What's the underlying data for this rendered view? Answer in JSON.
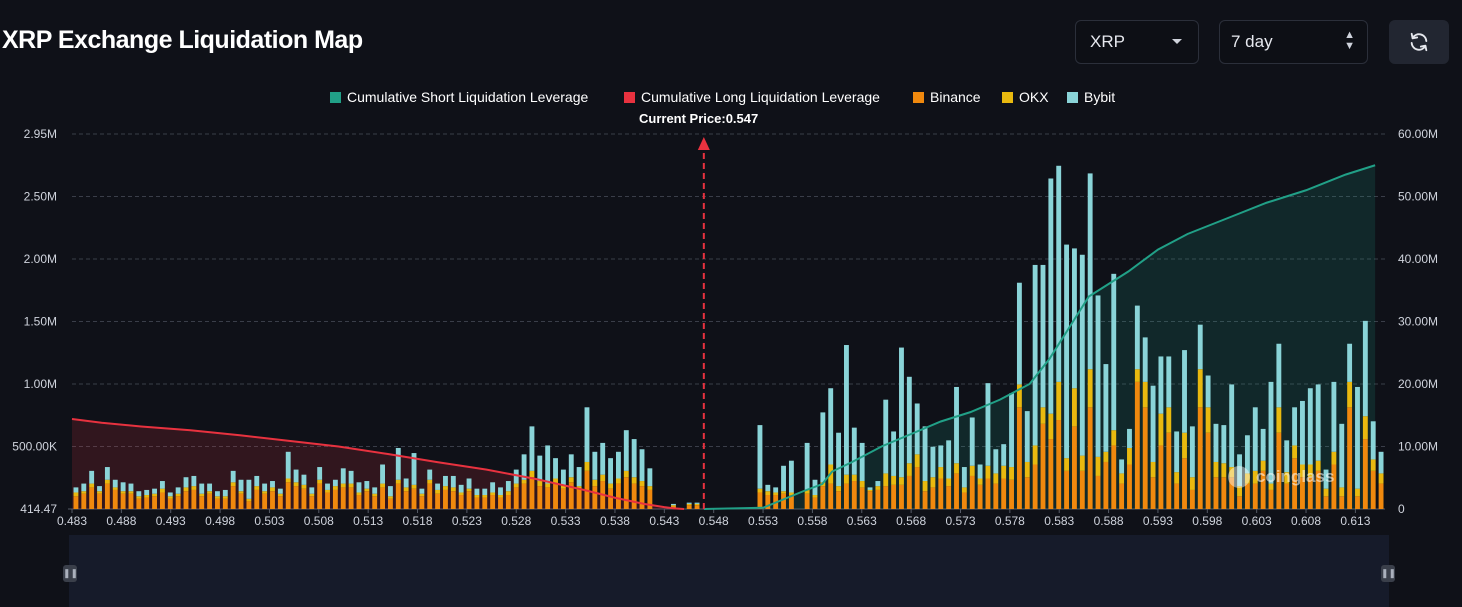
{
  "header": {
    "title": "XRP Exchange Liquidation Map",
    "coin_select": "XRP",
    "range_select": "7 day",
    "refresh_icon": "refresh-icon"
  },
  "watermark": "coinglass",
  "chart_data": {
    "type": "bar",
    "legend": [
      {
        "name": "Cumulative Short Liquidation Leverage",
        "color": "#21a087"
      },
      {
        "name": "Cumulative Long Liquidation Leverage",
        "color": "#e8323f"
      },
      {
        "name": "Binance",
        "color": "#f0890e"
      },
      {
        "name": "OKX",
        "color": "#e9b90f"
      },
      {
        "name": "Bybit",
        "color": "#8ad4d8"
      }
    ],
    "current_price_label": "Current Price:0.547",
    "current_price": 0.547,
    "x_range": [
      0.483,
      0.616
    ],
    "x_ticks": [
      "0.483",
      "0.488",
      "0.493",
      "0.498",
      "0.503",
      "0.508",
      "0.513",
      "0.518",
      "0.523",
      "0.528",
      "0.533",
      "0.538",
      "0.543",
      "0.548",
      "0.553",
      "0.558",
      "0.563",
      "0.568",
      "0.573",
      "0.578",
      "0.583",
      "0.588",
      "0.593",
      "0.598",
      "0.603",
      "0.608",
      "0.613"
    ],
    "y_left_ticks": [
      "414.47",
      "500.00K",
      "1.00M",
      "1.50M",
      "2.00M",
      "2.50M",
      "2.95M"
    ],
    "y_right_ticks": [
      "0",
      "10.00M",
      "20.00M",
      "30.00M",
      "40.00M",
      "50.00M",
      "60.00M"
    ],
    "y_left_range": [
      0,
      2950000
    ],
    "y_right_range": [
      0,
      60000000
    ],
    "stacks": [
      [
        100000,
        30000,
        40000
      ],
      [
        120000,
        20000,
        60000
      ],
      [
        170000,
        30000,
        100000
      ],
      [
        120000,
        20000,
        40000
      ],
      [
        200000,
        30000,
        100000
      ],
      [
        150000,
        20000,
        60000
      ],
      [
        120000,
        20000,
        70000
      ],
      [
        120000,
        20000,
        60000
      ],
      [
        80000,
        20000,
        40000
      ],
      [
        90000,
        20000,
        40000
      ],
      [
        100000,
        20000,
        40000
      ],
      [
        130000,
        30000,
        60000
      ],
      [
        80000,
        20000,
        30000
      ],
      [
        100000,
        20000,
        50000
      ],
      [
        140000,
        30000,
        80000
      ],
      [
        150000,
        30000,
        80000
      ],
      [
        100000,
        20000,
        80000
      ],
      [
        120000,
        20000,
        60000
      ],
      [
        80000,
        20000,
        40000
      ],
      [
        80000,
        20000,
        50000
      ],
      [
        180000,
        30000,
        90000
      ],
      [
        120000,
        20000,
        90000
      ],
      [
        60000,
        20000,
        150000
      ],
      [
        150000,
        30000,
        80000
      ],
      [
        120000,
        20000,
        60000
      ],
      [
        140000,
        30000,
        50000
      ],
      [
        100000,
        20000,
        40000
      ],
      [
        210000,
        30000,
        210000
      ],
      [
        180000,
        30000,
        100000
      ],
      [
        160000,
        30000,
        80000
      ],
      [
        100000,
        20000,
        50000
      ],
      [
        200000,
        30000,
        100000
      ],
      [
        130000,
        20000,
        50000
      ],
      [
        150000,
        30000,
        50000
      ],
      [
        170000,
        30000,
        120000
      ],
      [
        170000,
        30000,
        100000
      ],
      [
        110000,
        20000,
        80000
      ],
      [
        140000,
        20000,
        60000
      ],
      [
        100000,
        20000,
        50000
      ],
      [
        170000,
        30000,
        150000
      ],
      [
        80000,
        20000,
        80000
      ],
      [
        200000,
        30000,
        250000
      ],
      [
        140000,
        30000,
        70000
      ],
      [
        160000,
        30000,
        250000
      ],
      [
        100000,
        20000,
        40000
      ],
      [
        200000,
        30000,
        80000
      ],
      [
        120000,
        30000,
        50000
      ],
      [
        150000,
        30000,
        80000
      ],
      [
        140000,
        30000,
        90000
      ],
      [
        110000,
        20000,
        60000
      ],
      [
        140000,
        20000,
        80000
      ],
      [
        90000,
        20000,
        50000
      ],
      [
        90000,
        20000,
        50000
      ],
      [
        110000,
        20000,
        80000
      ],
      [
        90000,
        20000,
        60000
      ],
      [
        110000,
        30000,
        80000
      ],
      [
        170000,
        30000,
        110000
      ],
      [
        200000,
        30000,
        200000
      ],
      [
        250000,
        50000,
        350000
      ],
      [
        180000,
        40000,
        200000
      ],
      [
        170000,
        30000,
        300000
      ],
      [
        200000,
        40000,
        160000
      ],
      [
        160000,
        30000,
        120000
      ],
      [
        210000,
        40000,
        180000
      ],
      [
        150000,
        30000,
        150000
      ],
      [
        300000,
        70000,
        430000
      ],
      [
        180000,
        50000,
        220000
      ],
      [
        220000,
        50000,
        250000
      ],
      [
        160000,
        40000,
        200000
      ],
      [
        200000,
        40000,
        210000
      ],
      [
        250000,
        50000,
        320000
      ],
      [
        200000,
        50000,
        300000
      ],
      [
        180000,
        40000,
        250000
      ],
      [
        150000,
        30000,
        140000
      ],
      [
        0,
        0,
        0
      ],
      [
        0,
        0,
        0
      ],
      [
        20000,
        10000,
        10000
      ],
      [
        0,
        0,
        0
      ],
      [
        30000,
        10000,
        10000
      ],
      [
        30000,
        10000,
        10000
      ],
      [
        0,
        0,
        0
      ],
      [
        0,
        0,
        0
      ],
      [
        0,
        0,
        0
      ],
      [
        0,
        0,
        0
      ],
      [
        0,
        0,
        0
      ],
      [
        0,
        0,
        0
      ],
      [
        0,
        0,
        0
      ],
      [
        130000,
        30000,
        500000
      ],
      [
        110000,
        30000,
        50000
      ],
      [
        110000,
        20000,
        40000
      ],
      [
        120000,
        20000,
        200000
      ],
      [
        110000,
        20000,
        250000
      ],
      [
        0,
        0,
        0
      ],
      [
        120000,
        30000,
        370000
      ],
      [
        90000,
        20000,
        120000
      ],
      [
        180000,
        30000,
        550000
      ],
      [
        200000,
        150000,
        600000
      ],
      [
        140000,
        40000,
        420000
      ],
      [
        200000,
        70000,
        1020000
      ],
      [
        220000,
        50000,
        370000
      ],
      [
        170000,
        50000,
        300000
      ],
      [
        140000,
        10000,
        20000
      ],
      [
        150000,
        30000,
        40000
      ],
      [
        180000,
        100000,
        580000
      ],
      [
        190000,
        70000,
        350000
      ],
      [
        190000,
        60000,
        1020000
      ],
      [
        260000,
        100000,
        680000
      ],
      [
        330000,
        100000,
        400000
      ],
      [
        140000,
        80000,
        430000
      ],
      [
        170000,
        80000,
        240000
      ],
      [
        240000,
        90000,
        170000
      ],
      [
        180000,
        60000,
        300000
      ],
      [
        280000,
        80000,
        600000
      ],
      [
        130000,
        40000,
        160000
      ],
      [
        260000,
        80000,
        380000
      ],
      [
        190000,
        50000,
        110000
      ],
      [
        240000,
        100000,
        650000
      ],
      [
        200000,
        80000,
        190000
      ],
      [
        240000,
        100000,
        170000
      ],
      [
        230000,
        100000,
        580000
      ],
      [
        800000,
        180000,
        800000
      ],
      [
        250000,
        120000,
        400000
      ],
      [
        350000,
        150000,
        1420000
      ],
      [
        670000,
        130000,
        1120000
      ],
      [
        550000,
        200000,
        1850000
      ],
      [
        700000,
        300000,
        1700000
      ],
      [
        300000,
        100000,
        1680000
      ],
      [
        650000,
        300000,
        1100000
      ],
      [
        300000,
        120000,
        1580000
      ],
      [
        800000,
        300000,
        1540000
      ],
      [
        260000,
        150000,
        1270000
      ],
      [
        370000,
        80000,
        690000
      ],
      [
        500000,
        120000,
        1230000
      ],
      [
        200000,
        80000,
        110000
      ],
      [
        350000,
        130000,
        150000
      ],
      [
        1000000,
        100000,
        500000
      ],
      [
        800000,
        200000,
        350000
      ],
      [
        250000,
        120000,
        600000
      ],
      [
        500000,
        250000,
        450000
      ],
      [
        600000,
        200000,
        400000
      ],
      [
        200000,
        90000,
        320000
      ],
      [
        400000,
        200000,
        650000
      ],
      [
        150000,
        100000,
        400000
      ],
      [
        800000,
        300000,
        350000
      ],
      [
        600000,
        200000,
        250000
      ],
      [
        250000,
        120000,
        300000
      ],
      [
        250000,
        110000,
        300000
      ],
      [
        250000,
        80000,
        650000
      ],
      [
        100000,
        80000,
        250000
      ],
      [
        200000,
        80000,
        300000
      ],
      [
        200000,
        100000,
        500000
      ],
      [
        300000,
        80000,
        250000
      ],
      [
        150000,
        50000,
        800000
      ],
      [
        600000,
        200000,
        500000
      ],
      [
        200000,
        90000,
        250000
      ],
      [
        400000,
        100000,
        300000
      ],
      [
        250000,
        100000,
        500000
      ],
      [
        250000,
        100000,
        600000
      ],
      [
        300000,
        80000,
        600000
      ],
      [
        100000,
        60000,
        150000
      ],
      [
        350000,
        100000,
        550000
      ],
      [
        100000,
        70000,
        500000
      ],
      [
        800000,
        200000,
        300000
      ],
      [
        100000,
        60000,
        800000
      ],
      [
        550000,
        180000,
        750000
      ],
      [
        300000,
        90000,
        300000
      ],
      [
        200000,
        80000,
        170000
      ]
    ],
    "long_cumulative": {
      "x": [
        0.483,
        0.486,
        0.49,
        0.495,
        0.5,
        0.505,
        0.51,
        0.515,
        0.52,
        0.525,
        0.53,
        0.535,
        0.538,
        0.541,
        0.543,
        0.544,
        0.545
      ],
      "y": [
        14.4,
        13.8,
        13.2,
        12.6,
        11.8,
        10.9,
        10.0,
        8.8,
        7.5,
        6.3,
        4.8,
        3.0,
        1.8,
        0.8,
        0.3,
        0.1,
        0.0
      ]
    },
    "short_cumulative": {
      "x": [
        0.547,
        0.553,
        0.555,
        0.557,
        0.559,
        0.56,
        0.562,
        0.565,
        0.568,
        0.571,
        0.574,
        0.577,
        0.58,
        0.582,
        0.584,
        0.586,
        0.588,
        0.59,
        0.593,
        0.596,
        0.6,
        0.604,
        0.608,
        0.612,
        0.615
      ],
      "y": [
        0.0,
        0.2,
        1.5,
        2.8,
        4.0,
        6.0,
        7.5,
        10.0,
        12.0,
        14.0,
        15.5,
        17.5,
        20.0,
        24.0,
        29.0,
        34.0,
        36.0,
        38.0,
        41.5,
        44.0,
        46.5,
        49.0,
        51.0,
        53.5,
        55.0
      ]
    }
  }
}
